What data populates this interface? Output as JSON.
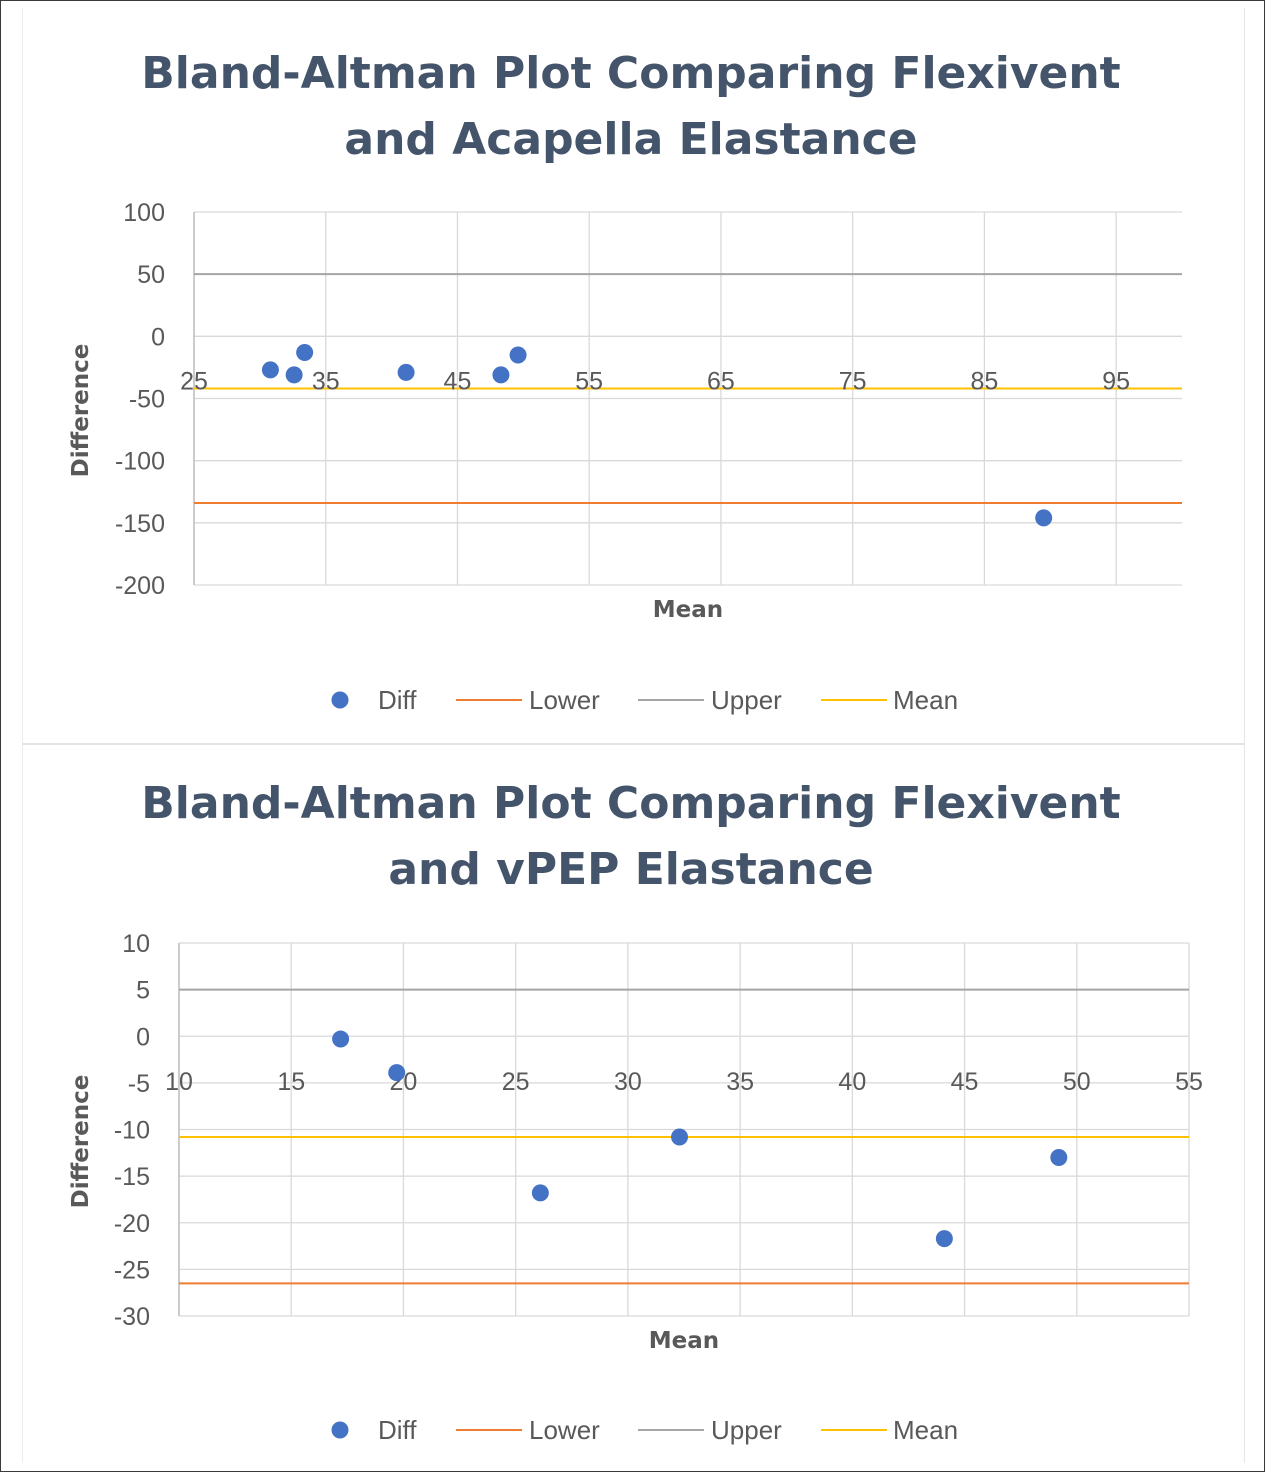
{
  "chart_data": [
    {
      "type": "scatter",
      "title_lines": [
        "Bland-Altman Plot Comparing Flexivent",
        "and Acapella Elastance"
      ],
      "xlabel": "Mean",
      "ylabel": "Difference",
      "xlim": [
        25,
        100
      ],
      "ylim": [
        -200,
        100
      ],
      "x_ticks": [
        25,
        35,
        45,
        55,
        65,
        75,
        85,
        95
      ],
      "y_ticks": [
        100,
        50,
        0,
        -50,
        -100,
        -150,
        -200
      ],
      "x_tick_labels_at_y": -33,
      "grid": true,
      "legend_position": "bottom",
      "series": [
        {
          "name": "Diff",
          "kind": "points",
          "color": "#4472c4",
          "points": [
            [
              30.8,
              -27
            ],
            [
              32.6,
              -31
            ],
            [
              33.4,
              -13
            ],
            [
              41.1,
              -29
            ],
            [
              48.3,
              -31
            ],
            [
              49.6,
              -15
            ],
            [
              89.5,
              -146
            ]
          ]
        },
        {
          "name": "Lower",
          "kind": "hline",
          "y": -134,
          "color": "#ed7d31"
        },
        {
          "name": "Upper",
          "kind": "hline",
          "y": 50,
          "color": "#a5a5a5"
        },
        {
          "name": "Mean",
          "kind": "hline",
          "y": -42,
          "color": "#ffc000"
        }
      ]
    },
    {
      "type": "scatter",
      "title_lines": [
        "Bland-Altman Plot Comparing Flexivent",
        "and vPEP Elastance"
      ],
      "xlabel": "Mean",
      "ylabel": "Difference",
      "xlim": [
        10,
        55
      ],
      "ylim": [
        -30,
        10
      ],
      "x_ticks": [
        10,
        15,
        20,
        25,
        30,
        35,
        40,
        45,
        50,
        55
      ],
      "y_ticks": [
        10,
        5,
        0,
        -5,
        -10,
        -15,
        -20,
        -25,
        -30
      ],
      "x_tick_labels_at_y": -4.5,
      "grid": true,
      "legend_position": "bottom",
      "series": [
        {
          "name": "Diff",
          "kind": "points",
          "color": "#4472c4",
          "points": [
            [
              17.2,
              -0.3
            ],
            [
              19.7,
              -3.9
            ],
            [
              26.1,
              -16.8
            ],
            [
              32.3,
              -10.8
            ],
            [
              44.1,
              -21.7
            ],
            [
              49.2,
              -13
            ]
          ]
        },
        {
          "name": "Lower",
          "kind": "hline",
          "y": -26.5,
          "color": "#ed7d31"
        },
        {
          "name": "Upper",
          "kind": "hline",
          "y": 5,
          "color": "#a5a5a5"
        },
        {
          "name": "Mean",
          "kind": "hline",
          "y": -10.8,
          "color": "#ffc000"
        }
      ]
    }
  ]
}
